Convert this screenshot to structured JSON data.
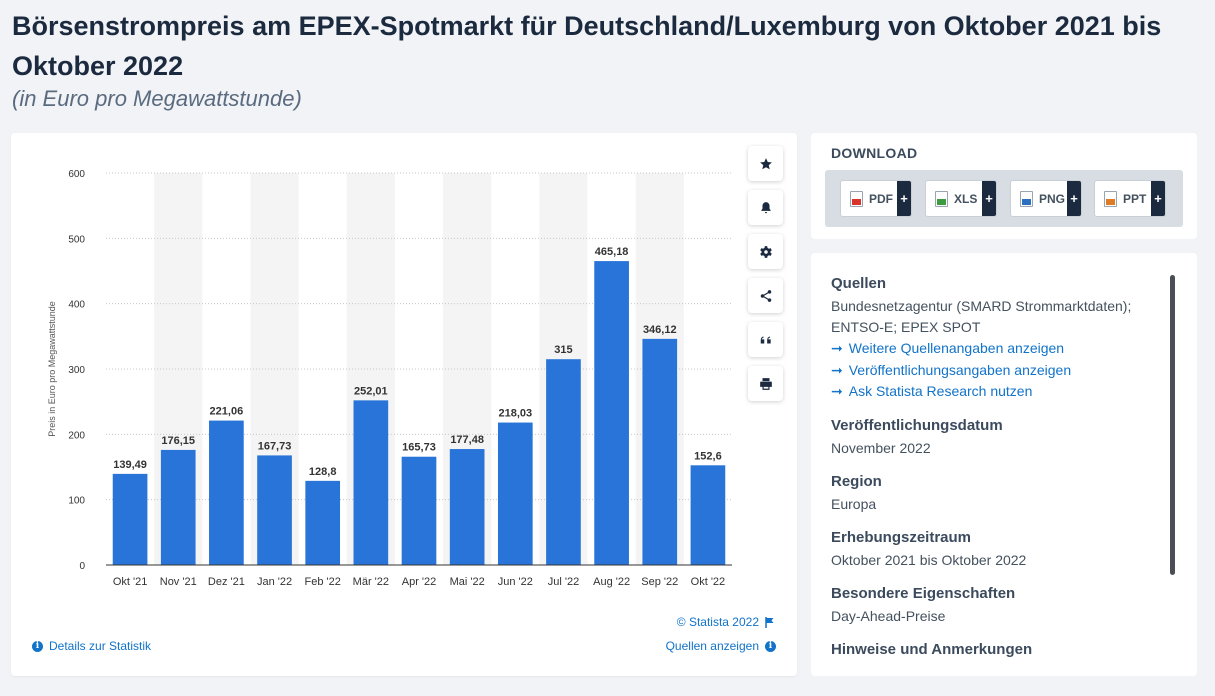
{
  "header": {
    "title": "Börsenstrompreis am EPEX-Spotmarkt für Deutschland/Luxemburg von Oktober 2021 bis Oktober 2022",
    "subtitle": "(in Euro pro Megawattstunde)"
  },
  "chart_data": {
    "type": "bar",
    "categories": [
      "Okt '21",
      "Nov '21",
      "Dez '21",
      "Jan '22",
      "Feb '22",
      "Mär '22",
      "Apr '22",
      "Mai '22",
      "Jun '22",
      "Jul '22",
      "Aug '22",
      "Sep '22",
      "Okt '22"
    ],
    "values": [
      139.49,
      176.15,
      221.06,
      167.73,
      128.8,
      252.01,
      165.73,
      177.48,
      218.03,
      315,
      465.18,
      346.12,
      152.6
    ],
    "value_labels": [
      "139,49",
      "176,15",
      "221,06",
      "167,73",
      "128,8",
      "252,01",
      "165,73",
      "177,48",
      "218,03",
      "315",
      "465,18",
      "346,12",
      "152,6"
    ],
    "ylabel": "Preis in Euro pro Megawattstunde",
    "ylim": [
      0,
      600
    ],
    "yticks": [
      0,
      100,
      200,
      300,
      400,
      500,
      600
    ],
    "grid": true,
    "bar_color": "#2874d8",
    "alt_band_color": "#f4f4f4"
  },
  "chart_tools": [
    {
      "name": "favorite",
      "icon": "star-icon"
    },
    {
      "name": "notification",
      "icon": "bell-icon"
    },
    {
      "name": "settings",
      "icon": "gear-icon"
    },
    {
      "name": "share",
      "icon": "share-icon"
    },
    {
      "name": "cite",
      "icon": "quote-icon"
    },
    {
      "name": "print",
      "icon": "printer-icon"
    }
  ],
  "chart_footer": {
    "copyright": "© Statista 2022",
    "details_link": "Details zur Statistik",
    "sources_link": "Quellen anzeigen"
  },
  "download": {
    "title": "DOWNLOAD",
    "buttons": [
      {
        "label": "PDF",
        "color": "#d9342b"
      },
      {
        "label": "XLS",
        "color": "#3c9a3f"
      },
      {
        "label": "PNG",
        "color": "#2d6fbf"
      },
      {
        "label": "PPT",
        "color": "#e07b25"
      }
    ],
    "plus": "+"
  },
  "info": {
    "sources_heading": "Quellen",
    "sources_line1": "Bundesnetzagentur (SMARD Strommarktdaten);",
    "sources_line2": "ENTSO-E; EPEX SPOT",
    "links": [
      "Weitere Quellenangaben anzeigen",
      "Veröffentlichungsangaben anzeigen",
      "Ask Statista Research nutzen"
    ],
    "pubdate_heading": "Veröffentlichungsdatum",
    "pubdate": "November 2022",
    "region_heading": "Region",
    "region": "Europa",
    "period_heading": "Erhebungszeitraum",
    "period": "Oktober 2021 bis Oktober 2022",
    "props_heading": "Besondere Eigenschaften",
    "props": "Day-Ahead-Preise",
    "notes_heading": "Hinweise und Anmerkungen"
  }
}
